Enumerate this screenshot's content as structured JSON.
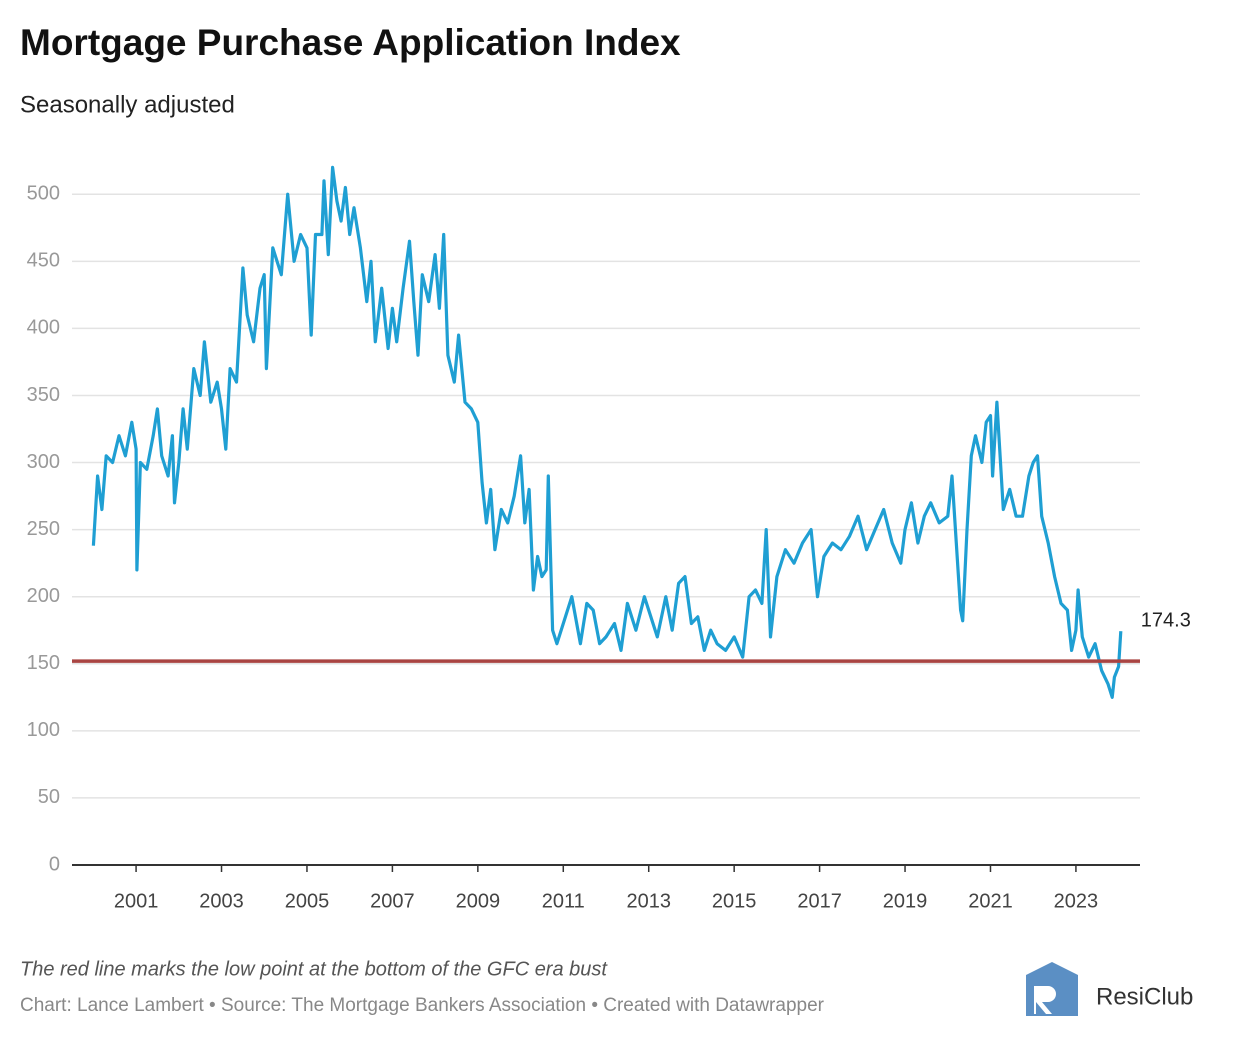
{
  "chart_data": {
    "type": "line",
    "title": "Mortgage Purchase Application Index",
    "subtitle": "Seasonally adjusted",
    "note": "The red line marks the low point at the bottom of the GFC era bust",
    "credit": "Chart: Lance Lambert • Source: The Mortgage Bankers Association • Created with Datawrapper",
    "brand": "ResiClub",
    "reference_line": {
      "value": 152,
      "color": "#a94442"
    },
    "grid": true,
    "xlim": [
      1999.5,
      2024.5
    ],
    "xticks": [
      2001,
      2003,
      2005,
      2007,
      2009,
      2011,
      2013,
      2015,
      2017,
      2019,
      2021,
      2023
    ],
    "ylim": [
      0,
      530
    ],
    "yticks": [
      0,
      50,
      100,
      150,
      200,
      250,
      300,
      350,
      400,
      450,
      500
    ],
    "series": [
      {
        "color": "#1f9fd3",
        "x": [
          2000.0,
          2000.1,
          2000.2,
          2000.3,
          2000.45,
          2000.6,
          2000.75,
          2000.9,
          2001.0,
          2001.02,
          2001.1,
          2001.25,
          2001.4,
          2001.5,
          2001.6,
          2001.75,
          2001.85,
          2001.9,
          2002.0,
          2002.1,
          2002.2,
          2002.35,
          2002.5,
          2002.6,
          2002.75,
          2002.9,
          2003.0,
          2003.1,
          2003.2,
          2003.35,
          2003.5,
          2003.6,
          2003.75,
          2003.9,
          2004.0,
          2004.05,
          2004.2,
          2004.4,
          2004.55,
          2004.7,
          2004.85,
          2005.0,
          2005.1,
          2005.2,
          2005.35,
          2005.4,
          2005.5,
          2005.6,
          2005.7,
          2005.8,
          2005.9,
          2006.0,
          2006.1,
          2006.25,
          2006.4,
          2006.5,
          2006.6,
          2006.75,
          2006.9,
          2007.0,
          2007.1,
          2007.25,
          2007.4,
          2007.5,
          2007.6,
          2007.7,
          2007.85,
          2008.0,
          2008.1,
          2008.2,
          2008.3,
          2008.45,
          2008.55,
          2008.7,
          2008.85,
          2009.0,
          2009.1,
          2009.2,
          2009.3,
          2009.4,
          2009.55,
          2009.7,
          2009.85,
          2010.0,
          2010.1,
          2010.2,
          2010.3,
          2010.4,
          2010.5,
          2010.6,
          2010.65,
          2010.75,
          2010.85,
          2011.0,
          2011.2,
          2011.4,
          2011.55,
          2011.7,
          2011.85,
          2012.0,
          2012.2,
          2012.35,
          2012.5,
          2012.7,
          2012.9,
          2013.0,
          2013.2,
          2013.4,
          2013.55,
          2013.7,
          2013.85,
          2014.0,
          2014.15,
          2014.3,
          2014.45,
          2014.6,
          2014.8,
          2015.0,
          2015.2,
          2015.35,
          2015.5,
          2015.65,
          2015.75,
          2015.85,
          2016.0,
          2016.2,
          2016.4,
          2016.6,
          2016.8,
          2016.95,
          2017.1,
          2017.3,
          2017.5,
          2017.7,
          2017.9,
          2018.1,
          2018.3,
          2018.5,
          2018.7,
          2018.9,
          2019.0,
          2019.15,
          2019.3,
          2019.45,
          2019.6,
          2019.8,
          2020.0,
          2020.1,
          2020.2,
          2020.3,
          2020.35,
          2020.45,
          2020.55,
          2020.65,
          2020.8,
          2020.9,
          2021.0,
          2021.05,
          2021.15,
          2021.3,
          2021.45,
          2021.6,
          2021.75,
          2021.9,
          2022.0,
          2022.1,
          2022.2,
          2022.35,
          2022.5,
          2022.65,
          2022.8,
          2022.9,
          2023.0,
          2023.05,
          2023.15,
          2023.3,
          2023.45,
          2023.6,
          2023.75,
          2023.85,
          2023.9,
          2024.0,
          2024.05
        ],
        "values": [
          238,
          290,
          265,
          305,
          300,
          320,
          305,
          330,
          310,
          220,
          300,
          295,
          320,
          340,
          305,
          290,
          320,
          270,
          300,
          340,
          310,
          370,
          350,
          390,
          345,
          360,
          340,
          310,
          370,
          360,
          445,
          410,
          390,
          430,
          440,
          370,
          460,
          440,
          500,
          450,
          470,
          460,
          395,
          470,
          470,
          510,
          455,
          520,
          495,
          480,
          505,
          470,
          490,
          460,
          420,
          450,
          390,
          430,
          385,
          415,
          390,
          430,
          465,
          420,
          380,
          440,
          420,
          455,
          415,
          470,
          380,
          360,
          395,
          345,
          340,
          330,
          285,
          255,
          280,
          235,
          265,
          255,
          275,
          305,
          255,
          280,
          205,
          230,
          215,
          220,
          290,
          175,
          165,
          180,
          200,
          165,
          195,
          190,
          165,
          170,
          180,
          160,
          195,
          175,
          200,
          190,
          170,
          200,
          175,
          210,
          215,
          180,
          185,
          160,
          175,
          165,
          160,
          170,
          155,
          200,
          205,
          195,
          250,
          170,
          215,
          235,
          225,
          240,
          250,
          200,
          230,
          240,
          235,
          245,
          260,
          235,
          250,
          265,
          240,
          225,
          250,
          270,
          240,
          260,
          270,
          255,
          260,
          290,
          240,
          190,
          182,
          250,
          305,
          320,
          300,
          330,
          335,
          290,
          345,
          265,
          280,
          260,
          260,
          290,
          300,
          305,
          260,
          240,
          215,
          195,
          190,
          160,
          175,
          205,
          170,
          155,
          165,
          145,
          135,
          125,
          140,
          148,
          174.3
        ]
      }
    ]
  }
}
